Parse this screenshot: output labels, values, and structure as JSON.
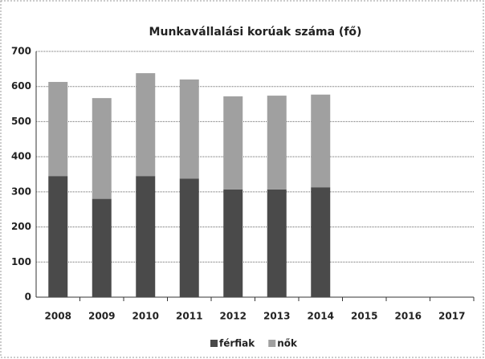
{
  "chart_data": {
    "type": "stacked_bar",
    "title": "Munkavállalási korúak száma (fő)",
    "categories": [
      "2008",
      "2009",
      "2010",
      "2011",
      "2012",
      "2013",
      "2014",
      "2015",
      "2016",
      "2017"
    ],
    "series": [
      {
        "name": "férfiak",
        "color": "#4a4a4a",
        "values": [
          345,
          280,
          345,
          338,
          307,
          307,
          313,
          null,
          null,
          null
        ]
      },
      {
        "name": "nők",
        "color": "#a0a0a0",
        "values": [
          268,
          287,
          293,
          282,
          265,
          267,
          264,
          null,
          null,
          null
        ]
      }
    ],
    "ylim": [
      0,
      700
    ],
    "yticks": [
      0,
      100,
      200,
      300,
      400,
      500,
      600,
      700
    ],
    "grid": true,
    "legend": "bottom"
  }
}
